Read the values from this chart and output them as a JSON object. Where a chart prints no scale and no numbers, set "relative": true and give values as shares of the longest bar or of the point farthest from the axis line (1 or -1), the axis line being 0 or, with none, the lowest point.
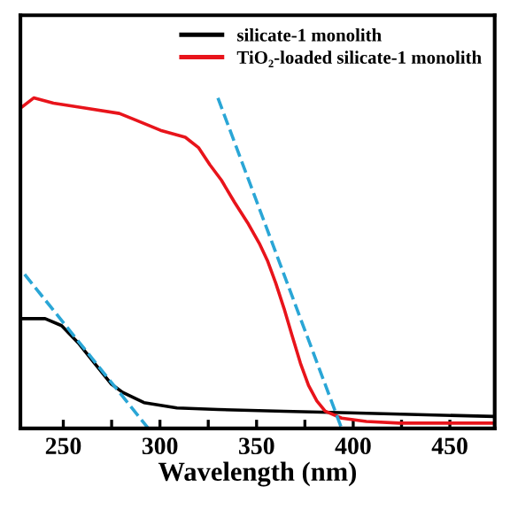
{
  "chart_data": {
    "type": "line",
    "xlabel": "Wavelength (nm)",
    "relative": true,
    "legend": "top right",
    "grid": false,
    "xlim": [
      227.8,
      473.2
    ],
    "xticks": [
      250,
      {
        "value": 275,
        "label": null
      },
      300,
      {
        "value": 325,
        "label": null
      },
      350,
      {
        "value": 375,
        "label": null
      },
      400,
      {
        "value": 425,
        "label": null
      },
      450
    ],
    "series": [
      {
        "name": "silicate-1 monolith",
        "color": "#000000",
        "x": [
          228,
          240.6,
          249.1,
          257.7,
          266.2,
          274.7,
          280.7,
          291.7,
          308.8,
          330.1,
          364.2,
          398.2,
          473.2
        ],
        "values": [
          0.332,
          0.332,
          0.311,
          0.259,
          0.197,
          0.135,
          0.109,
          0.078,
          0.062,
          0.057,
          0.052,
          0.047,
          0.036
        ]
      },
      {
        "name": "TiO₂-loaded silicate-1 monolith",
        "color": "#e8141b",
        "x": [
          227.8,
          234.7,
          244.9,
          261.9,
          279,
          287.5,
          300.3,
          313.1,
          319.9,
          325.8,
          331.8,
          338.6,
          345.4,
          351.4,
          355.6,
          359.9,
          364.2,
          368.4,
          372.7,
          376.9,
          381.2,
          385.5,
          394,
          406.8,
          423.8,
          473.2
        ],
        "values": [
          0.969,
          1,
          0.984,
          0.969,
          0.953,
          0.933,
          0.902,
          0.881,
          0.85,
          0.798,
          0.751,
          0.684,
          0.622,
          0.56,
          0.508,
          0.44,
          0.363,
          0.28,
          0.197,
          0.13,
          0.083,
          0.052,
          0.031,
          0.021,
          0.016,
          0.016
        ]
      },
      {
        "color": "#2aa6d6",
        "line_style": "dashed",
        "x": [
          230,
          294
        ],
        "values": [
          0.466,
          0
        ]
      },
      {
        "color": "#2aa6d6",
        "line_style": "dashed",
        "x": [
          330,
          394
        ],
        "values": [
          1,
          0
        ]
      }
    ]
  }
}
